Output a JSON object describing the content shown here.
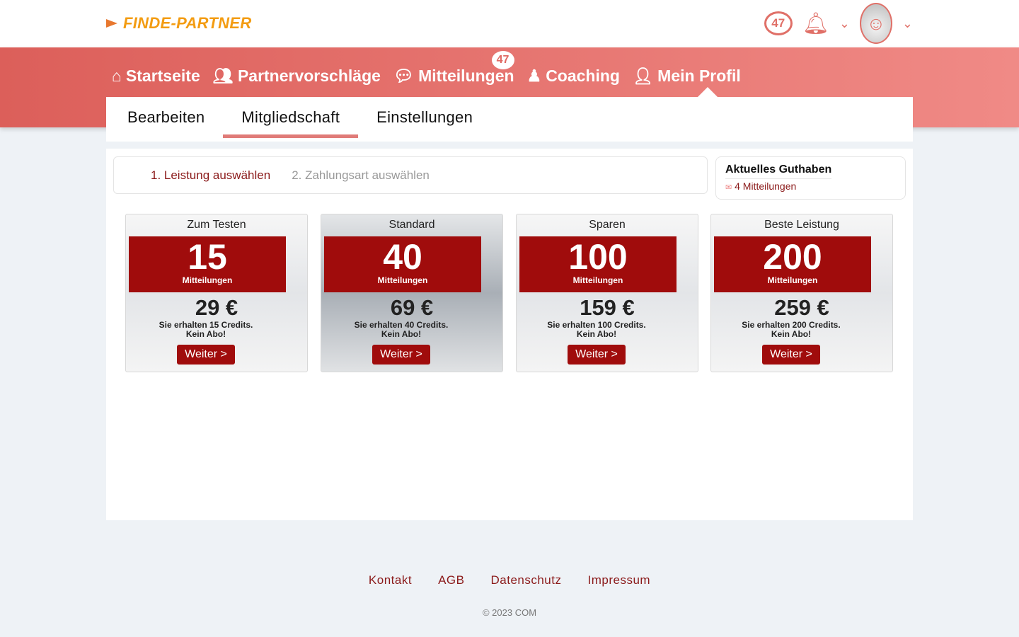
{
  "header": {
    "logo": "FINDE-PARTNER",
    "message_count": "47"
  },
  "nav": {
    "items": [
      {
        "label": "Startseite",
        "icon": "home"
      },
      {
        "label": "Partnervorschläge",
        "icon": "users"
      },
      {
        "label": "Mitteilungen",
        "icon": "comments",
        "badge": "47"
      },
      {
        "label": "Coaching",
        "icon": "coach"
      },
      {
        "label": "Mein Profil",
        "icon": "user"
      }
    ]
  },
  "tabs": [
    {
      "label": "Bearbeiten"
    },
    {
      "label": "Mitgliedschaft",
      "active": true
    },
    {
      "label": "Einstellungen"
    }
  ],
  "steps": {
    "step1": "1. Leistung auswählen",
    "step2": "2. Zahlungsart auswählen"
  },
  "credit": {
    "title": "Aktuelles Guthaben",
    "value": "4 Mitteilungen"
  },
  "packages": [
    {
      "name": "Zum Testen",
      "count": "15",
      "unit": "Mitteilungen",
      "price": "29 €",
      "info1": "Sie erhalten 15 Credits.",
      "info2": "Kein Abo!",
      "button": "Weiter >"
    },
    {
      "name": "Standard",
      "count": "40",
      "unit": "Mitteilungen",
      "price": "69 €",
      "info1": "Sie erhalten 40 Credits.",
      "info2": "Kein Abo!",
      "button": "Weiter >"
    },
    {
      "name": "Sparen",
      "count": "100",
      "unit": "Mitteilungen",
      "price": "159 €",
      "info1": "Sie erhalten 100 Credits.",
      "info2": "Kein Abo!",
      "button": "Weiter >"
    },
    {
      "name": "Beste Leistung",
      "count": "200",
      "unit": "Mitteilungen",
      "price": "259 €",
      "info1": "Sie erhalten 200 Credits.",
      "info2": "Kein Abo!",
      "button": "Weiter >"
    }
  ],
  "footer": {
    "links": [
      "Kontakt",
      "AGB",
      "Datenschutz",
      "Impressum"
    ],
    "copyright": "© 2023 COM"
  },
  "colors": {
    "accent": "#a00c0c",
    "band_start": "#dc5f5a",
    "band_end": "#f08a86",
    "logo": "#f39c12"
  }
}
